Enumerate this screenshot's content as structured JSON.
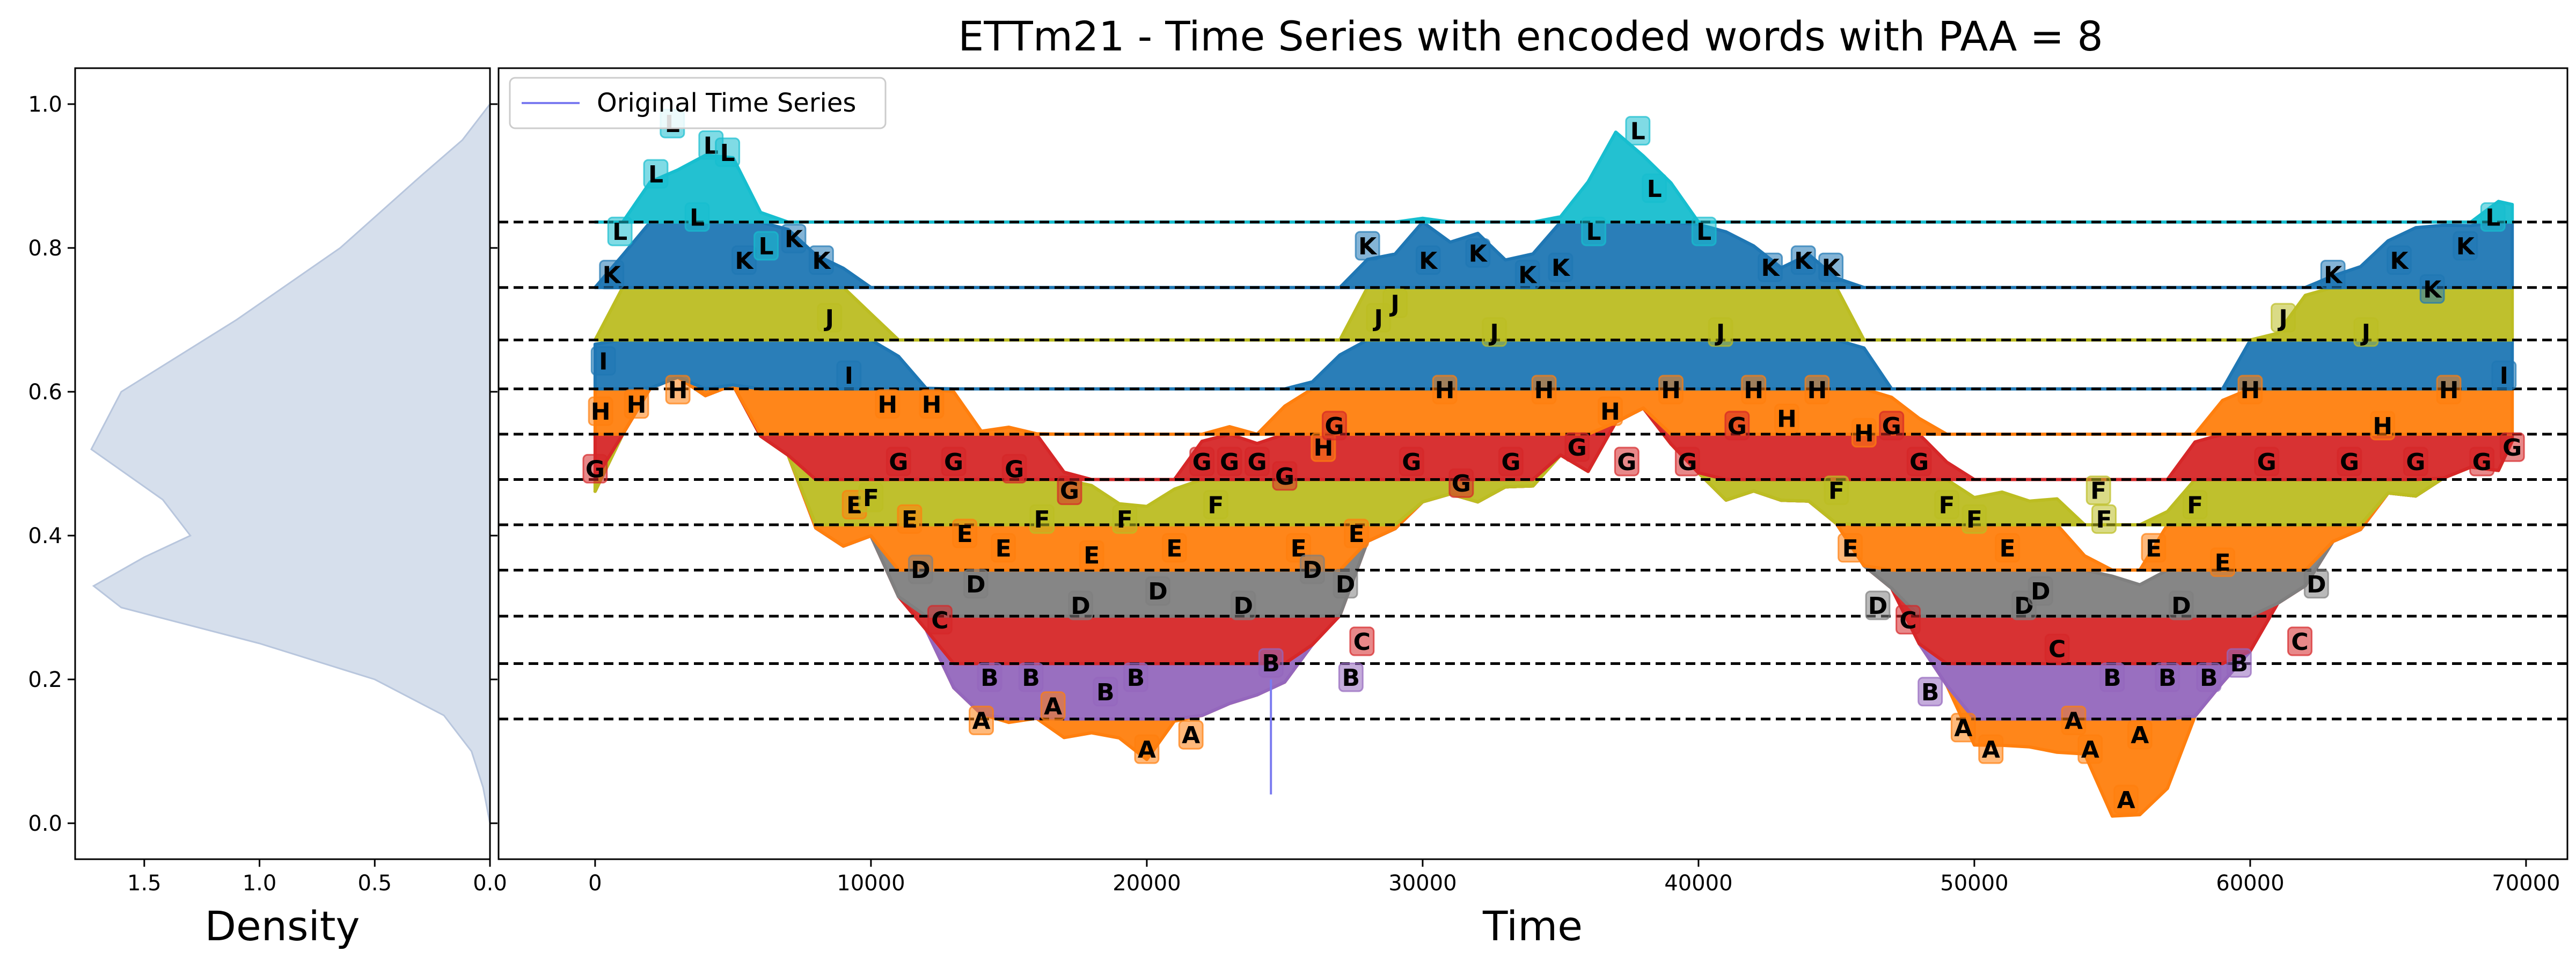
{
  "chart_data": {
    "type": "line",
    "title": "ETTm21 - Time Series with encoded words with PAA = 8",
    "density_panel": {
      "xlabel": "Density",
      "x_ticks": [
        "1.5",
        "1.0",
        "0.5",
        "0.0"
      ],
      "xlim": [
        1.8,
        0.0
      ],
      "y_ticks": [
        "0.0",
        "0.2",
        "0.4",
        "0.6",
        "0.8",
        "1.0"
      ],
      "ylim": [
        -0.05,
        1.05
      ],
      "fill_color": "#d6dfec",
      "density_points": [
        [
          0.0,
          0.0
        ],
        [
          0.05,
          0.03
        ],
        [
          0.1,
          0.08
        ],
        [
          0.15,
          0.2
        ],
        [
          0.2,
          0.5
        ],
        [
          0.25,
          1.0
        ],
        [
          0.3,
          1.6
        ],
        [
          0.33,
          1.72
        ],
        [
          0.37,
          1.5
        ],
        [
          0.4,
          1.3
        ],
        [
          0.45,
          1.42
        ],
        [
          0.52,
          1.73
        ],
        [
          0.6,
          1.6
        ],
        [
          0.7,
          1.1
        ],
        [
          0.8,
          0.65
        ],
        [
          0.9,
          0.3
        ],
        [
          0.95,
          0.12
        ],
        [
          1.0,
          0.0
        ]
      ]
    },
    "main_panel": {
      "xlabel": "Time",
      "x_ticks": [
        "0",
        "10000",
        "20000",
        "30000",
        "40000",
        "50000",
        "60000",
        "70000"
      ],
      "xlim": [
        -3500,
        71500
      ],
      "ylim": [
        -0.05,
        1.05
      ],
      "legend": {
        "label": "Original Time Series",
        "color": "#7b7bf0",
        "position": "top-left"
      },
      "breakpoints": [
        0.145,
        0.222,
        0.288,
        0.352,
        0.415,
        0.478,
        0.541,
        0.604,
        0.672,
        0.745,
        0.836
      ],
      "alphabet": [
        "A",
        "B",
        "C",
        "D",
        "E",
        "F",
        "G",
        "H",
        "I",
        "J",
        "K",
        "L"
      ],
      "band_colors": [
        "#ff7f0e",
        "#9467bd",
        "#d62728",
        "#7f7f7f",
        "#ff7f0e",
        "#bcbd22",
        "#d62728",
        "#ff7f0e",
        "#1f77b4",
        "#bcbd22",
        "#1f77b4",
        "#17becf"
      ],
      "series_envelope": {
        "x": [
          0,
          1000,
          2000,
          3000,
          4000,
          5000,
          6000,
          7000,
          8000,
          9000,
          10000,
          11000,
          12000,
          13000,
          14000,
          15000,
          16000,
          17000,
          18000,
          19000,
          20000,
          21000,
          22000,
          23000,
          24000,
          25000,
          26000,
          27000,
          28000,
          29000,
          30000,
          31000,
          32000,
          33000,
          34000,
          35000,
          36000,
          37000,
          38000,
          39000,
          40000,
          41000,
          42000,
          43000,
          44000,
          45000,
          46000,
          47000,
          48000,
          49000,
          50000,
          51000,
          52000,
          53000,
          54000,
          55000,
          56000,
          57000,
          58000,
          59000,
          60000,
          61000,
          62000,
          63000,
          64000,
          65000,
          66000,
          67000,
          68000,
          69000,
          69500
        ],
        "low": [
          0.45,
          0.55,
          0.6,
          0.62,
          0.6,
          0.6,
          0.55,
          0.5,
          0.42,
          0.38,
          0.4,
          0.32,
          0.26,
          0.2,
          0.14,
          0.15,
          0.14,
          0.12,
          0.13,
          0.11,
          0.1,
          0.13,
          0.16,
          0.16,
          0.18,
          0.2,
          0.24,
          0.3,
          0.38,
          0.42,
          0.44,
          0.46,
          0.45,
          0.46,
          0.48,
          0.5,
          0.5,
          0.55,
          0.58,
          0.53,
          0.48,
          0.46,
          0.45,
          0.46,
          0.44,
          0.42,
          0.36,
          0.32,
          0.26,
          0.18,
          0.12,
          0.1,
          0.11,
          0.1,
          0.09,
          0.02,
          0.0,
          0.06,
          0.14,
          0.2,
          0.24,
          0.3,
          0.34,
          0.38,
          0.42,
          0.45,
          0.46,
          0.48,
          0.49,
          0.5,
          0.52
        ],
        "high": [
          0.66,
          0.8,
          0.88,
          0.92,
          0.92,
          0.93,
          0.85,
          0.82,
          0.8,
          0.76,
          0.72,
          0.64,
          0.61,
          0.6,
          0.54,
          0.56,
          0.53,
          0.5,
          0.46,
          0.45,
          0.44,
          0.46,
          0.54,
          0.54,
          0.54,
          0.57,
          0.62,
          0.65,
          0.78,
          0.8,
          0.83,
          0.82,
          0.81,
          0.79,
          0.79,
          0.84,
          0.9,
          0.95,
          0.94,
          0.88,
          0.84,
          0.82,
          0.8,
          0.78,
          0.78,
          0.77,
          0.65,
          0.6,
          0.56,
          0.5,
          0.46,
          0.45,
          0.46,
          0.44,
          0.38,
          0.34,
          0.33,
          0.44,
          0.52,
          0.6,
          0.66,
          0.69,
          0.73,
          0.76,
          0.78,
          0.8,
          0.84,
          0.82,
          0.84,
          0.86,
          0.86
        ]
      },
      "glitch": {
        "x": 24500,
        "y_from": 0.2,
        "y_to": 0.04
      },
      "word_labels": [
        {
          "x": 0,
          "y": 0.49,
          "l": "G"
        },
        {
          "x": 200,
          "y": 0.57,
          "l": "H"
        },
        {
          "x": 300,
          "y": 0.64,
          "l": "I"
        },
        {
          "x": 600,
          "y": 0.76,
          "l": "K"
        },
        {
          "x": 900,
          "y": 0.82,
          "l": "L"
        },
        {
          "x": 1500,
          "y": 0.58,
          "l": "H"
        },
        {
          "x": 2200,
          "y": 0.9,
          "l": "L"
        },
        {
          "x": 2800,
          "y": 0.97,
          "l": "L"
        },
        {
          "x": 3000,
          "y": 0.6,
          "l": "H"
        },
        {
          "x": 3700,
          "y": 0.84,
          "l": "L"
        },
        {
          "x": 4200,
          "y": 0.94,
          "l": "L"
        },
        {
          "x": 4800,
          "y": 0.93,
          "l": "L"
        },
        {
          "x": 5400,
          "y": 0.78,
          "l": "K"
        },
        {
          "x": 6200,
          "y": 0.8,
          "l": "L"
        },
        {
          "x": 7200,
          "y": 0.81,
          "l": "K"
        },
        {
          "x": 8200,
          "y": 0.78,
          "l": "K"
        },
        {
          "x": 8500,
          "y": 0.7,
          "l": "J"
        },
        {
          "x": 9200,
          "y": 0.62,
          "l": "I"
        },
        {
          "x": 9400,
          "y": 0.44,
          "l": "E"
        },
        {
          "x": 10000,
          "y": 0.45,
          "l": "F"
        },
        {
          "x": 10600,
          "y": 0.58,
          "l": "H"
        },
        {
          "x": 11000,
          "y": 0.5,
          "l": "G"
        },
        {
          "x": 11400,
          "y": 0.42,
          "l": "E"
        },
        {
          "x": 11800,
          "y": 0.35,
          "l": "D"
        },
        {
          "x": 12200,
          "y": 0.58,
          "l": "H"
        },
        {
          "x": 12500,
          "y": 0.28,
          "l": "C"
        },
        {
          "x": 13000,
          "y": 0.5,
          "l": "G"
        },
        {
          "x": 13400,
          "y": 0.4,
          "l": "E"
        },
        {
          "x": 13800,
          "y": 0.33,
          "l": "D"
        },
        {
          "x": 14000,
          "y": 0.14,
          "l": "A"
        },
        {
          "x": 14300,
          "y": 0.2,
          "l": "B"
        },
        {
          "x": 14800,
          "y": 0.38,
          "l": "E"
        },
        {
          "x": 15200,
          "y": 0.49,
          "l": "G"
        },
        {
          "x": 15800,
          "y": 0.2,
          "l": "B"
        },
        {
          "x": 16200,
          "y": 0.42,
          "l": "F"
        },
        {
          "x": 16600,
          "y": 0.16,
          "l": "A"
        },
        {
          "x": 17200,
          "y": 0.46,
          "l": "G"
        },
        {
          "x": 17600,
          "y": 0.3,
          "l": "D"
        },
        {
          "x": 18000,
          "y": 0.37,
          "l": "E"
        },
        {
          "x": 18500,
          "y": 0.18,
          "l": "B"
        },
        {
          "x": 19200,
          "y": 0.42,
          "l": "F"
        },
        {
          "x": 19600,
          "y": 0.2,
          "l": "B"
        },
        {
          "x": 20000,
          "y": 0.1,
          "l": "A"
        },
        {
          "x": 20400,
          "y": 0.32,
          "l": "D"
        },
        {
          "x": 21000,
          "y": 0.38,
          "l": "E"
        },
        {
          "x": 21600,
          "y": 0.12,
          "l": "A"
        },
        {
          "x": 22000,
          "y": 0.5,
          "l": "G"
        },
        {
          "x": 22500,
          "y": 0.44,
          "l": "F"
        },
        {
          "x": 23000,
          "y": 0.5,
          "l": "G"
        },
        {
          "x": 23500,
          "y": 0.3,
          "l": "D"
        },
        {
          "x": 24000,
          "y": 0.5,
          "l": "G"
        },
        {
          "x": 24500,
          "y": 0.22,
          "l": "B"
        },
        {
          "x": 25000,
          "y": 0.48,
          "l": "G"
        },
        {
          "x": 25500,
          "y": 0.38,
          "l": "E"
        },
        {
          "x": 26000,
          "y": 0.35,
          "l": "D"
        },
        {
          "x": 26400,
          "y": 0.52,
          "l": "H"
        },
        {
          "x": 26800,
          "y": 0.55,
          "l": "G"
        },
        {
          "x": 27200,
          "y": 0.33,
          "l": "D"
        },
        {
          "x": 27400,
          "y": 0.2,
          "l": "B"
        },
        {
          "x": 27600,
          "y": 0.4,
          "l": "E"
        },
        {
          "x": 27800,
          "y": 0.25,
          "l": "C"
        },
        {
          "x": 28000,
          "y": 0.8,
          "l": "K"
        },
        {
          "x": 28400,
          "y": 0.7,
          "l": "J"
        },
        {
          "x": 29000,
          "y": 0.72,
          "l": "J"
        },
        {
          "x": 29600,
          "y": 0.5,
          "l": "G"
        },
        {
          "x": 30200,
          "y": 0.78,
          "l": "K"
        },
        {
          "x": 30800,
          "y": 0.6,
          "l": "H"
        },
        {
          "x": 31400,
          "y": 0.47,
          "l": "G"
        },
        {
          "x": 32000,
          "y": 0.79,
          "l": "K"
        },
        {
          "x": 32600,
          "y": 0.68,
          "l": "J"
        },
        {
          "x": 33200,
          "y": 0.5,
          "l": "G"
        },
        {
          "x": 33800,
          "y": 0.76,
          "l": "K"
        },
        {
          "x": 34400,
          "y": 0.6,
          "l": "H"
        },
        {
          "x": 35000,
          "y": 0.77,
          "l": "K"
        },
        {
          "x": 35600,
          "y": 0.52,
          "l": "G"
        },
        {
          "x": 36200,
          "y": 0.82,
          "l": "L"
        },
        {
          "x": 36800,
          "y": 0.57,
          "l": "H"
        },
        {
          "x": 37400,
          "y": 0.5,
          "l": "G"
        },
        {
          "x": 37800,
          "y": 0.96,
          "l": "L"
        },
        {
          "x": 38400,
          "y": 0.88,
          "l": "L"
        },
        {
          "x": 39000,
          "y": 0.6,
          "l": "H"
        },
        {
          "x": 39600,
          "y": 0.5,
          "l": "G"
        },
        {
          "x": 40200,
          "y": 0.82,
          "l": "L"
        },
        {
          "x": 40800,
          "y": 0.68,
          "l": "J"
        },
        {
          "x": 41400,
          "y": 0.55,
          "l": "G"
        },
        {
          "x": 42000,
          "y": 0.6,
          "l": "H"
        },
        {
          "x": 42600,
          "y": 0.77,
          "l": "K"
        },
        {
          "x": 43200,
          "y": 0.56,
          "l": "H"
        },
        {
          "x": 43800,
          "y": 0.78,
          "l": "K"
        },
        {
          "x": 44300,
          "y": 0.6,
          "l": "H"
        },
        {
          "x": 44800,
          "y": 0.77,
          "l": "K"
        },
        {
          "x": 45000,
          "y": 0.46,
          "l": "F"
        },
        {
          "x": 45500,
          "y": 0.38,
          "l": "E"
        },
        {
          "x": 46000,
          "y": 0.54,
          "l": "H"
        },
        {
          "x": 46500,
          "y": 0.3,
          "l": "D"
        },
        {
          "x": 47000,
          "y": 0.55,
          "l": "G"
        },
        {
          "x": 47600,
          "y": 0.28,
          "l": "C"
        },
        {
          "x": 48000,
          "y": 0.5,
          "l": "G"
        },
        {
          "x": 48400,
          "y": 0.18,
          "l": "B"
        },
        {
          "x": 49000,
          "y": 0.44,
          "l": "F"
        },
        {
          "x": 49600,
          "y": 0.13,
          "l": "A"
        },
        {
          "x": 50000,
          "y": 0.42,
          "l": "F"
        },
        {
          "x": 50600,
          "y": 0.1,
          "l": "A"
        },
        {
          "x": 51200,
          "y": 0.38,
          "l": "E"
        },
        {
          "x": 51800,
          "y": 0.3,
          "l": "D"
        },
        {
          "x": 52400,
          "y": 0.32,
          "l": "D"
        },
        {
          "x": 53000,
          "y": 0.24,
          "l": "C"
        },
        {
          "x": 53600,
          "y": 0.14,
          "l": "A"
        },
        {
          "x": 54200,
          "y": 0.1,
          "l": "A"
        },
        {
          "x": 54500,
          "y": 0.46,
          "l": "F"
        },
        {
          "x": 54700,
          "y": 0.42,
          "l": "F"
        },
        {
          "x": 55000,
          "y": 0.2,
          "l": "B"
        },
        {
          "x": 55500,
          "y": 0.03,
          "l": "A"
        },
        {
          "x": 56000,
          "y": 0.12,
          "l": "A"
        },
        {
          "x": 56500,
          "y": 0.38,
          "l": "E"
        },
        {
          "x": 57000,
          "y": 0.2,
          "l": "B"
        },
        {
          "x": 57500,
          "y": 0.3,
          "l": "D"
        },
        {
          "x": 58000,
          "y": 0.44,
          "l": "F"
        },
        {
          "x": 58500,
          "y": 0.2,
          "l": "B"
        },
        {
          "x": 59000,
          "y": 0.36,
          "l": "E"
        },
        {
          "x": 59600,
          "y": 0.22,
          "l": "B"
        },
        {
          "x": 60000,
          "y": 0.6,
          "l": "H"
        },
        {
          "x": 60600,
          "y": 0.5,
          "l": "G"
        },
        {
          "x": 61200,
          "y": 0.7,
          "l": "J"
        },
        {
          "x": 61800,
          "y": 0.25,
          "l": "C"
        },
        {
          "x": 62400,
          "y": 0.33,
          "l": "D"
        },
        {
          "x": 63000,
          "y": 0.76,
          "l": "K"
        },
        {
          "x": 63600,
          "y": 0.5,
          "l": "G"
        },
        {
          "x": 64200,
          "y": 0.68,
          "l": "J"
        },
        {
          "x": 64800,
          "y": 0.55,
          "l": "H"
        },
        {
          "x": 65400,
          "y": 0.78,
          "l": "K"
        },
        {
          "x": 66000,
          "y": 0.5,
          "l": "G"
        },
        {
          "x": 66600,
          "y": 0.74,
          "l": "K"
        },
        {
          "x": 67200,
          "y": 0.6,
          "l": "H"
        },
        {
          "x": 67800,
          "y": 0.8,
          "l": "K"
        },
        {
          "x": 68400,
          "y": 0.5,
          "l": "G"
        },
        {
          "x": 68800,
          "y": 0.84,
          "l": "L"
        },
        {
          "x": 69200,
          "y": 0.62,
          "l": "I"
        },
        {
          "x": 69500,
          "y": 0.52,
          "l": "G"
        }
      ]
    }
  }
}
